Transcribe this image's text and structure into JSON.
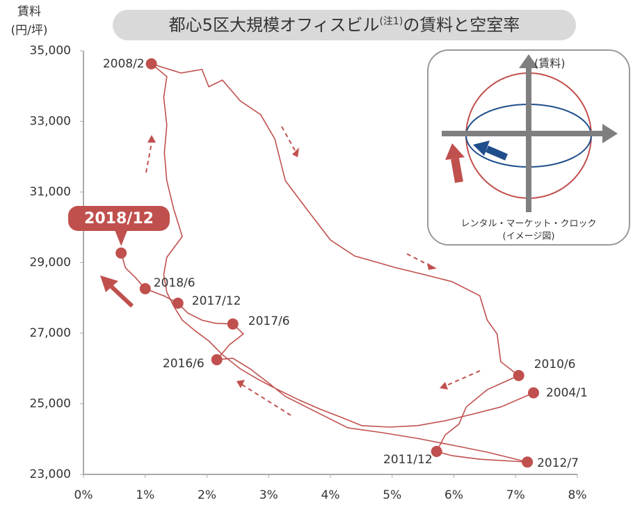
{
  "chart_data": {
    "type": "line",
    "title": "都心5区大規模オフィスビル",
    "title_note": "(注1)",
    "title_end": "の賃料と空室率",
    "ylabel": [
      "賃料",
      "(円/坪)"
    ],
    "xlim": [
      0,
      8
    ],
    "xticks": [
      {
        "value": 0,
        "label": "0%"
      },
      {
        "value": 1,
        "label": "1%"
      },
      {
        "value": 2,
        "label": "2%"
      },
      {
        "value": 3,
        "label": "3%"
      },
      {
        "value": 4,
        "label": "4%"
      },
      {
        "value": 5,
        "label": "5%"
      },
      {
        "value": 6,
        "label": "6%"
      },
      {
        "value": 7,
        "label": "7%"
      },
      {
        "value": 8,
        "label": "8%"
      }
    ],
    "ylim": [
      23000,
      35000
    ],
    "yticks": [
      {
        "value": 23000,
        "label": "23,000"
      },
      {
        "value": 25000,
        "label": "25,000"
      },
      {
        "value": 27000,
        "label": "27,000"
      },
      {
        "value": 29000,
        "label": "29,000"
      },
      {
        "value": 31000,
        "label": "31,000"
      },
      {
        "value": 33000,
        "label": "33,000"
      },
      {
        "value": 35000,
        "label": "35,000"
      }
    ],
    "color": "#c0504d",
    "x": [
      7.29,
      6.76,
      6.31,
      5.86,
      5.41,
      4.96,
      4.51,
      4.17,
      3.83,
      3.49,
      3.15,
      2.82,
      2.54,
      2.25,
      2.03,
      1.8,
      1.6,
      1.46,
      1.35,
      1.3,
      1.35,
      1.6,
      1.46,
      1.35,
      1.31,
      1.35,
      1.3,
      1.35,
      1.1,
      1.58,
      1.92,
      2.03,
      2.25,
      2.54,
      2.87,
      3.1,
      3.27,
      3.61,
      4.0,
      4.39,
      5.07,
      5.52,
      5.97,
      6.42,
      6.54,
      6.7,
      6.76,
      7.05,
      6.54,
      6.2,
      6.08,
      5.86,
      5.72,
      5.97,
      6.42,
      7.19,
      6.54,
      5.97,
      5.41,
      4.85,
      4.28,
      3.94,
      3.61,
      3.27,
      2.99,
      2.7,
      2.42,
      2.16,
      2.37,
      2.59,
      2.42,
      2.14,
      1.92,
      1.69,
      1.53,
      1.3,
      1.0,
      0.85,
      0.68,
      0.61
    ],
    "y": [
      25310,
      24910,
      24710,
      24520,
      24380,
      24340,
      24380,
      24620,
      24850,
      25110,
      25400,
      25700,
      25990,
      26390,
      26780,
      27080,
      27370,
      27770,
      28160,
      28660,
      29150,
      29740,
      30530,
      31320,
      32110,
      32890,
      33680,
      34270,
      34630,
      34370,
      34470,
      33980,
      34170,
      33580,
      33190,
      32500,
      31320,
      30530,
      29640,
      29190,
      28850,
      28660,
      28460,
      28060,
      27370,
      26980,
      26190,
      25800,
      25400,
      24910,
      24420,
      24120,
      23650,
      23530,
      23430,
      23350,
      23630,
      23830,
      24020,
      24180,
      24320,
      24620,
      24910,
      25210,
      25600,
      25990,
      26290,
      26250,
      26680,
      26980,
      27260,
      27280,
      27370,
      27570,
      27850,
      28060,
      28260,
      28560,
      28850,
      29270
    ],
    "points": {
      "labels": [
        "2008/2",
        "2010/6",
        "2004/1",
        "2011/12",
        "2012/7",
        "2016/6",
        "2017/6",
        "2017/12",
        "2018/6",
        "2018/12"
      ],
      "x": [
        1.1,
        7.05,
        7.29,
        5.72,
        7.19,
        2.16,
        2.42,
        1.53,
        1.0,
        0.61
      ],
      "y": [
        34630,
        25800,
        25310,
        23650,
        23350,
        26250,
        27260,
        27850,
        28260,
        29270
      ]
    },
    "inset": {
      "axis_label": "(賃料)",
      "caption": [
        "レンタル・マーケット・クロック",
        "(イメージ図)"
      ]
    }
  }
}
